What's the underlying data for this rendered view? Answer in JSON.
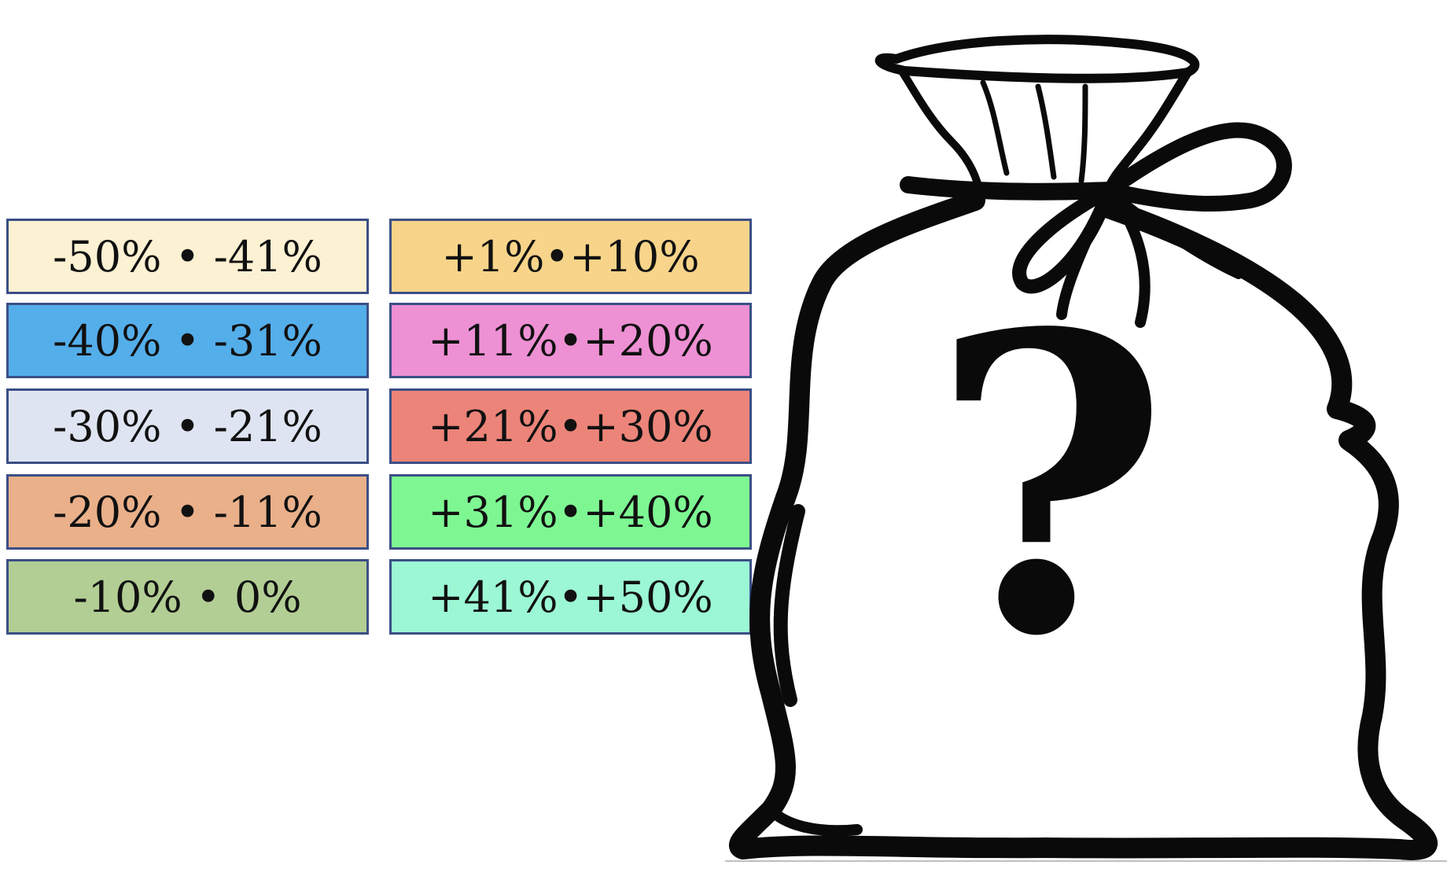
{
  "tiles": [
    {
      "label": "-50% • -41%",
      "color": "#fcf1d2"
    },
    {
      "label": "-40% • -31%",
      "color": "#54aeea"
    },
    {
      "label": "-30% • -21%",
      "color": "#dfe4f2"
    },
    {
      "label": "-20% • -11%",
      "color": "#e9b08a"
    },
    {
      "label": "-10% • 0%",
      "color": "#b2ce94"
    },
    {
      "label": "+1%•+10%",
      "color": "#f7d489"
    },
    {
      "label": "+11%•+20%",
      "color": "#ee90d4"
    },
    {
      "label": "+21%•+30%",
      "color": "#ec8479"
    },
    {
      "label": "+31%•+40%",
      "color": "#7ef793"
    },
    {
      "label": "+41%•+50%",
      "color": "#9cf7d5"
    }
  ],
  "illustration": {
    "name": "mystery-bag",
    "symbol": "?"
  }
}
